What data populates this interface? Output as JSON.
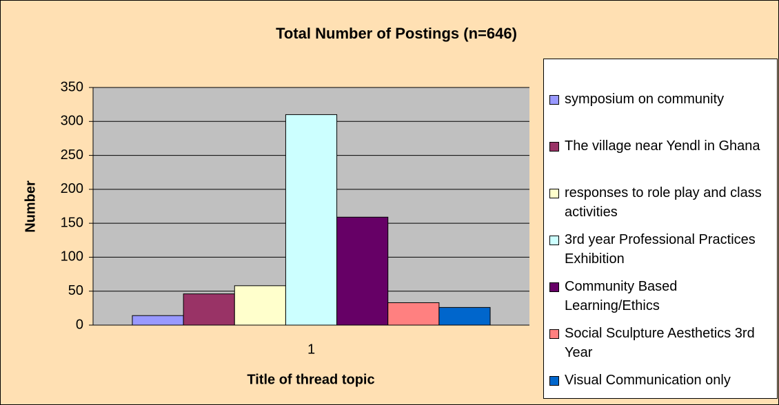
{
  "chart_data": {
    "type": "bar",
    "title": "Total Number of Postings (n=646)",
    "x_label": "Title of thread topic",
    "y_label": "Number",
    "categories": [
      "1"
    ],
    "series": [
      {
        "name": "symposium on community",
        "color": "#9999ff",
        "values": [
          14
        ]
      },
      {
        "name": "The village near Yendl in Ghana",
        "color": "#993366",
        "values": [
          46
        ]
      },
      {
        "name": "responses to role play and class activities",
        "color": "#ffffcc",
        "values": [
          58
        ]
      },
      {
        "name": "3rd year Professional Practices Exhibition",
        "color": "#ccffff",
        "values": [
          310
        ]
      },
      {
        "name": "Community Based Learning/Ethics",
        "color": "#660066",
        "values": [
          159
        ]
      },
      {
        "name": "Social Sculpture Aesthetics 3rd Year",
        "color": "#ff8080",
        "values": [
          33
        ]
      },
      {
        "name": "Visual Communication only",
        "color": "#0066cc",
        "values": [
          26
        ]
      }
    ],
    "ylim": [
      0,
      350
    ],
    "yticks": [
      0,
      50,
      100,
      150,
      200,
      250,
      300,
      350
    ],
    "grid": true,
    "legend": "right"
  }
}
